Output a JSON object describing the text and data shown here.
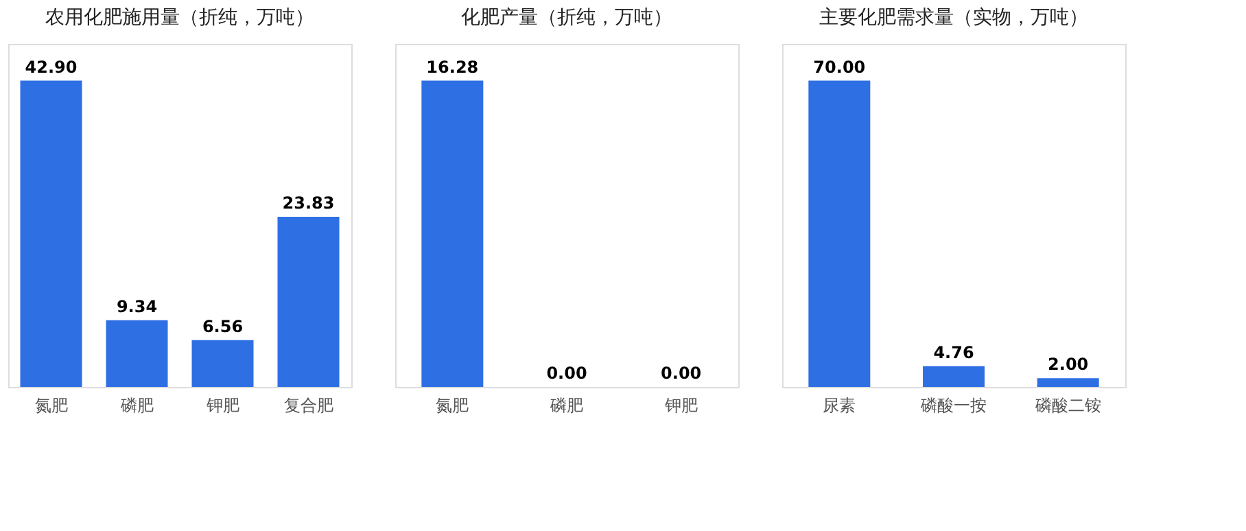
{
  "chart_data": [
    {
      "type": "bar",
      "title": "农用化肥施用量（折纯，万吨）",
      "categories": [
        "氮肥",
        "磷肥",
        "钾肥",
        "复合肥"
      ],
      "values": [
        42.9,
        9.34,
        6.56,
        23.83
      ],
      "value_labels": [
        "42.90",
        "9.34",
        "6.56",
        "23.83"
      ],
      "color": "#2f6fe4",
      "tick_labels": "x"
    },
    {
      "type": "bar",
      "title": "化肥产量（折纯，万吨）",
      "categories": [
        "氮肥",
        "磷肥",
        "钾肥"
      ],
      "values": [
        16.28,
        0.0,
        0.0
      ],
      "value_labels": [
        "16.28",
        "0.00",
        "0.00"
      ],
      "color": "#2f6fe4",
      "tick_labels": "x"
    },
    {
      "type": "bar",
      "title": "主要化肥需求量（实物，万吨）",
      "categories": [
        "尿素",
        "磷酸一按",
        "磷酸二铵"
      ],
      "values": [
        70.0,
        4.76,
        2.0
      ],
      "value_labels": [
        "70.00",
        "4.76",
        "2.00"
      ],
      "color": "#2f6fe4",
      "tick_labels": "x"
    }
  ]
}
